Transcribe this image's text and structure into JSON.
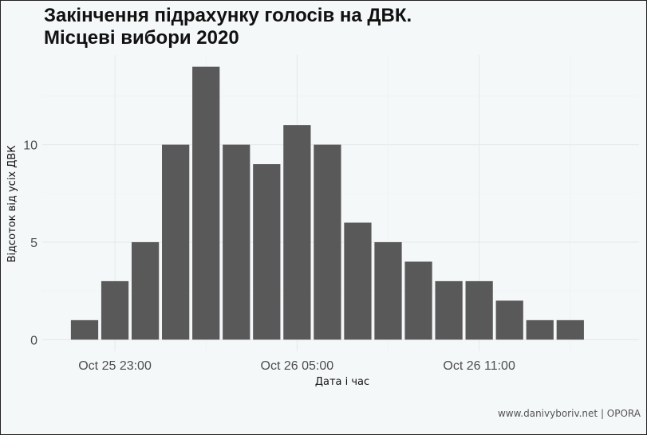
{
  "chart_data": {
    "type": "bar",
    "title_line1": "Закінчення підрахунку голосів на ДВК.",
    "title_line2": "Місцеві вибори 2020",
    "xlabel": "Дата і час",
    "ylabel": "Відсоток від усіх ДВК",
    "caption": "www.danivyboriv.net | OPORA",
    "x_tick_labels": [
      "Oct 25 23:00",
      "Oct 26 05:00",
      "Oct 26 11:00"
    ],
    "y_ticks": [
      0,
      5,
      10
    ],
    "ylim": [
      -0.6,
      14.6
    ],
    "x": [
      "Oct 25 22:00",
      "Oct 25 23:00",
      "Oct 26 00:00",
      "Oct 26 01:00",
      "Oct 26 02:00",
      "Oct 26 03:00",
      "Oct 26 04:00",
      "Oct 26 05:00",
      "Oct 26 06:00",
      "Oct 26 07:00",
      "Oct 26 08:00",
      "Oct 26 09:00",
      "Oct 26 10:00",
      "Oct 26 11:00",
      "Oct 26 12:00",
      "Oct 26 13:00",
      "Oct 26 14:00"
    ],
    "values": [
      1,
      3,
      5,
      10,
      14,
      10,
      9,
      11,
      10,
      6,
      5,
      4,
      3,
      3,
      2,
      1,
      1
    ],
    "grid": true,
    "bar_color": "#595959"
  }
}
